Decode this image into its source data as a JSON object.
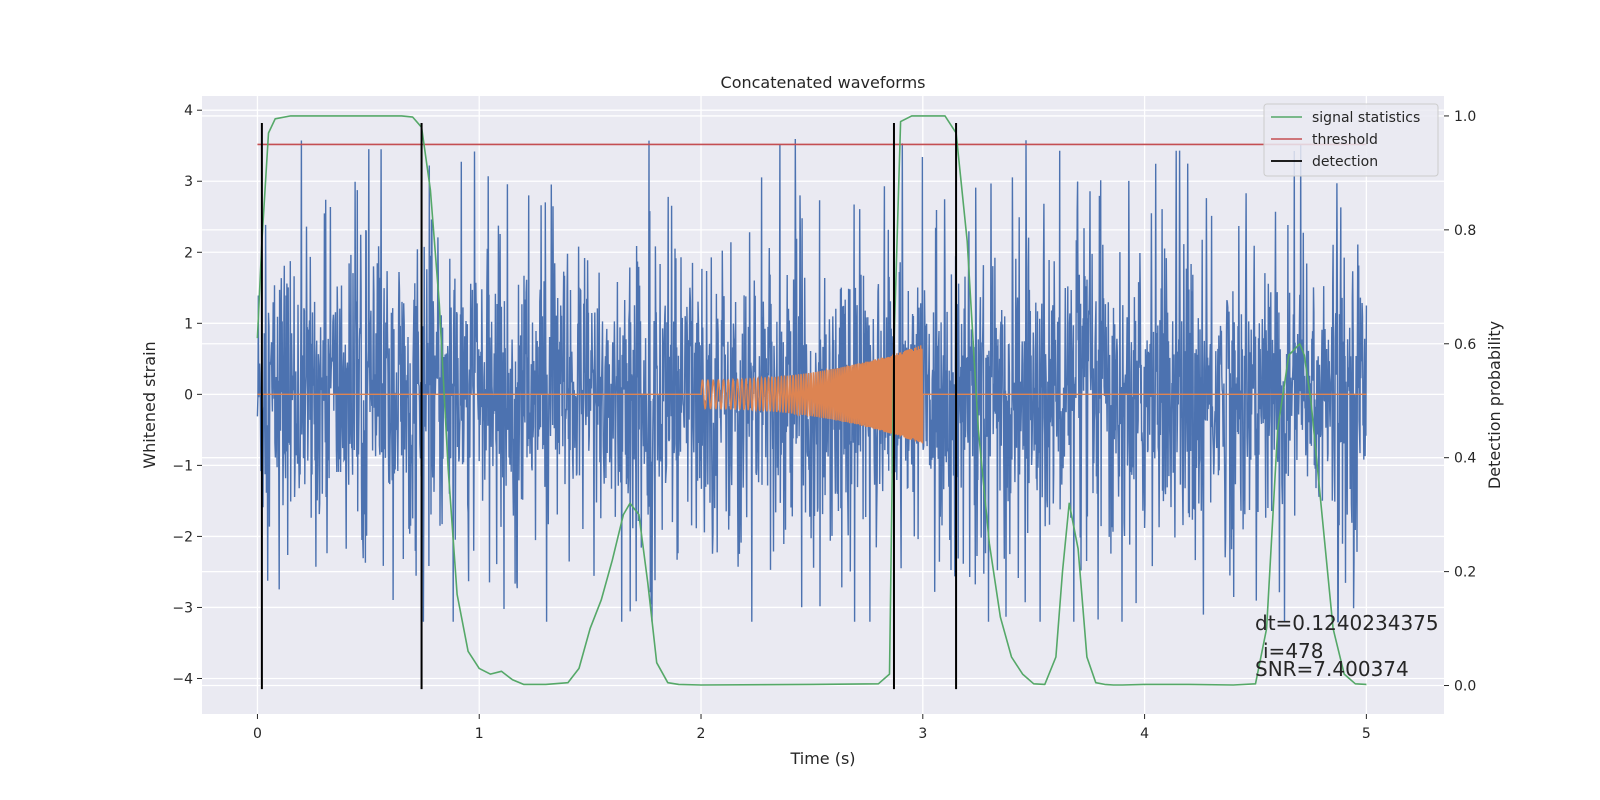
{
  "chart_data": {
    "type": "line",
    "title": "Concatenated waveforms",
    "xlabel": "Time (s)",
    "ylabel_left": "Whitened strain",
    "ylabel_right": "Detection probability",
    "xlim": [
      -0.25,
      5.35
    ],
    "ylim_left": [
      -4.5,
      4.2
    ],
    "ylim_right": [
      -0.05,
      1.035
    ],
    "xticks": [
      0,
      1,
      2,
      3,
      4,
      5
    ],
    "yticks_left": [
      4,
      3,
      2,
      1,
      0,
      -1,
      -2,
      -3,
      -4
    ],
    "yticks_left_labels": [
      "4",
      "3",
      "2",
      "1",
      "0",
      "−1",
      "−2",
      "−3",
      "−4"
    ],
    "yticks_right": [
      1.0,
      0.8,
      0.6,
      0.4,
      0.2,
      0.0
    ],
    "yticks_right_labels": [
      "1.0",
      "0.8",
      "0.6",
      "0.4",
      "0.2",
      "0.0"
    ],
    "grid": true,
    "legend_position": "top-right",
    "legend": [
      {
        "label": "signal statistics",
        "color": "#55a868"
      },
      {
        "label": "threshold",
        "color": "#c44e52"
      },
      {
        "label": "detection",
        "color": "#000000"
      }
    ],
    "series": [
      {
        "role": "whitened strain (noise)",
        "axis": "left",
        "color": "#4c72b0",
        "x_range": [
          0,
          5
        ],
        "approx_envelope": [
          -3.2,
          3.8
        ]
      },
      {
        "role": "injected chirp",
        "axis": "left",
        "color": "#dd8452",
        "x_range": [
          2.0,
          3.0
        ],
        "amplitude_start": 0.2,
        "amplitude_end": 0.7
      },
      {
        "name": "signal statistics",
        "axis": "right",
        "color": "#55a868",
        "x": [
          0.0,
          0.02,
          0.05,
          0.08,
          0.15,
          0.3,
          0.5,
          0.65,
          0.7,
          0.74,
          0.78,
          0.82,
          0.86,
          0.9,
          0.95,
          1.0,
          1.05,
          1.1,
          1.15,
          1.2,
          1.3,
          1.4,
          1.45,
          1.5,
          1.55,
          1.6,
          1.65,
          1.68,
          1.72,
          1.76,
          1.8,
          1.85,
          1.9,
          2.0,
          2.5,
          2.8,
          2.85,
          2.87,
          2.9,
          2.95,
          3.0,
          3.1,
          3.15,
          3.2,
          3.25,
          3.3,
          3.35,
          3.4,
          3.45,
          3.5,
          3.55,
          3.6,
          3.63,
          3.66,
          3.7,
          3.74,
          3.78,
          3.82,
          3.86,
          3.9,
          4.0,
          4.2,
          4.4,
          4.5,
          4.55,
          4.6,
          4.65,
          4.7,
          4.72,
          4.75,
          4.8,
          4.85,
          4.9,
          4.95,
          5.0
        ],
        "y": [
          0.61,
          0.78,
          0.97,
          0.995,
          1.0,
          1.0,
          1.0,
          1.0,
          0.998,
          0.98,
          0.87,
          0.67,
          0.38,
          0.16,
          0.06,
          0.03,
          0.02,
          0.025,
          0.01,
          0.002,
          0.002,
          0.005,
          0.03,
          0.1,
          0.15,
          0.22,
          0.3,
          0.32,
          0.3,
          0.18,
          0.04,
          0.005,
          0.002,
          0.001,
          0.002,
          0.003,
          0.02,
          0.6,
          0.99,
          1.0,
          1.0,
          1.0,
          0.97,
          0.78,
          0.45,
          0.25,
          0.12,
          0.05,
          0.02,
          0.003,
          0.002,
          0.05,
          0.2,
          0.32,
          0.24,
          0.05,
          0.005,
          0.002,
          0.001,
          0.001,
          0.002,
          0.002,
          0.001,
          0.003,
          0.1,
          0.45,
          0.58,
          0.6,
          0.58,
          0.5,
          0.3,
          0.1,
          0.02,
          0.003,
          0.002
        ]
      },
      {
        "name": "threshold",
        "axis": "right",
        "color": "#c44e52",
        "x": [
          0,
          5
        ],
        "y": [
          0.95,
          0.95
        ]
      }
    ],
    "detections": {
      "color": "#000000",
      "x": [
        0.02,
        0.74,
        2.87,
        3.15
      ],
      "y_range_left": [
        -4.15,
        3.82
      ]
    },
    "annotations": [
      "dt=0.1240234375",
      "i=478",
      "SNR=7.400374"
    ]
  }
}
